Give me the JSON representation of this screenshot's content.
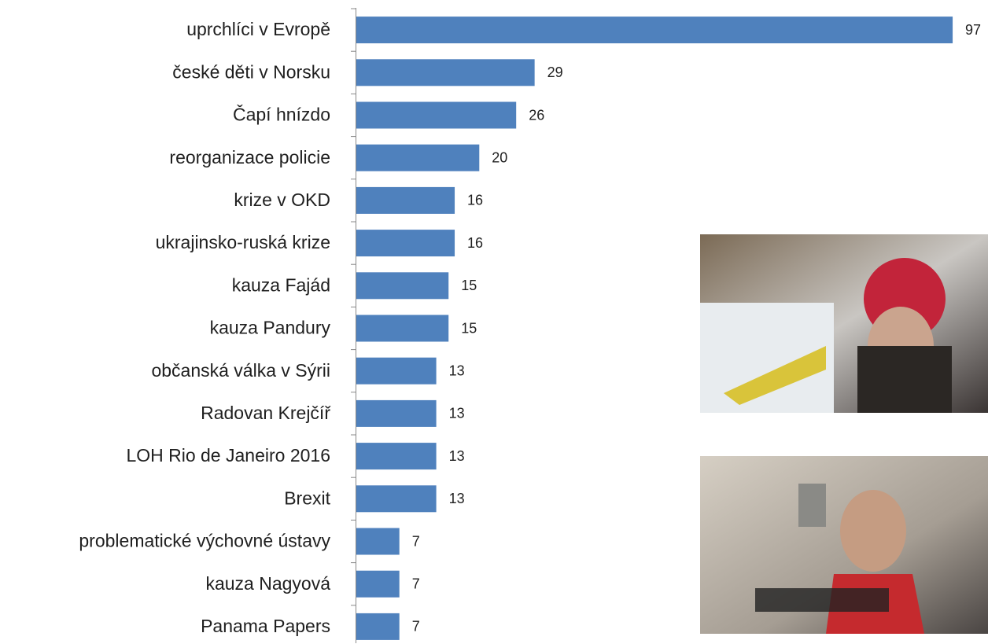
{
  "chart_data": {
    "type": "hbar",
    "categories": [
      "uprchlíci v Evropě",
      "české děti v Norsku",
      "Čapí hnízdo",
      "reorganizace policie",
      "krize v OKD",
      "ukrajinsko-ruská krize",
      "kauza Fajád",
      "kauza Pandury",
      "občanská válka v Sýrii",
      "Radovan Krejčíř",
      "LOH Rio de Janeiro 2016",
      "Brexit",
      "problematické výchovné ústavy",
      "kauza Nagyová",
      "Panama Papers"
    ],
    "values": [
      97,
      29,
      26,
      20,
      16,
      16,
      15,
      15,
      13,
      13,
      13,
      13,
      7,
      7,
      7
    ],
    "color": "#4f81bd"
  }
}
